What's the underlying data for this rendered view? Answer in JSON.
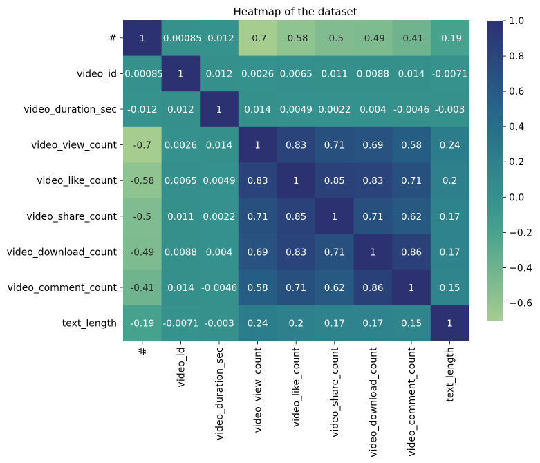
{
  "chart_data": {
    "type": "heatmap",
    "title": "Heatmap of the dataset",
    "xlabel": "",
    "ylabel": "",
    "labels": [
      "#",
      "video_id",
      "video_duration_sec",
      "video_view_count",
      "video_like_count",
      "video_share_count",
      "video_download_count",
      "video_comment_count",
      "text_length"
    ],
    "values": [
      [
        1,
        -0.00085,
        -0.012,
        -0.7,
        -0.58,
        -0.5,
        -0.49,
        -0.41,
        -0.19
      ],
      [
        -0.00085,
        1,
        0.012,
        0.0026,
        0.0065,
        0.011,
        0.0088,
        0.014,
        -0.0071
      ],
      [
        -0.012,
        0.012,
        1,
        0.014,
        0.0049,
        0.0022,
        0.004,
        -0.0046,
        -0.003
      ],
      [
        -0.7,
        0.0026,
        0.014,
        1,
        0.83,
        0.71,
        0.69,
        0.58,
        0.24
      ],
      [
        -0.58,
        0.0065,
        0.0049,
        0.83,
        1,
        0.85,
        0.83,
        0.71,
        0.2
      ],
      [
        -0.5,
        0.011,
        0.0022,
        0.71,
        0.85,
        1,
        0.71,
        0.62,
        0.17
      ],
      [
        -0.49,
        0.0088,
        0.004,
        0.69,
        0.83,
        0.71,
        1,
        0.86,
        0.17
      ],
      [
        -0.41,
        0.014,
        -0.0046,
        0.58,
        0.71,
        0.62,
        0.86,
        1,
        0.15
      ],
      [
        -0.19,
        -0.0071,
        -0.003,
        0.24,
        0.2,
        0.17,
        0.17,
        0.15,
        1
      ]
    ],
    "annotations": [
      [
        "1",
        "-0.00085",
        "-0.012",
        "-0.7",
        "-0.58",
        "-0.5",
        "-0.49",
        "-0.41",
        "-0.19"
      ],
      [
        "-0.00085",
        "1",
        "0.012",
        "0.0026",
        "0.0065",
        "0.011",
        "0.0088",
        "0.014",
        "-0.0071"
      ],
      [
        "-0.012",
        "0.012",
        "1",
        "0.014",
        "0.0049",
        "0.0022",
        "0.004",
        "-0.0046",
        "-0.003"
      ],
      [
        "-0.7",
        "0.0026",
        "0.014",
        "1",
        "0.83",
        "0.71",
        "0.69",
        "0.58",
        "0.24"
      ],
      [
        "-0.58",
        "0.0065",
        "0.0049",
        "0.83",
        "1",
        "0.85",
        "0.83",
        "0.71",
        "0.2"
      ],
      [
        "-0.5",
        "0.011",
        "0.0022",
        "0.71",
        "0.85",
        "1",
        "0.71",
        "0.62",
        "0.17"
      ],
      [
        "-0.49",
        "0.0088",
        "0.004",
        "0.69",
        "0.83",
        "0.71",
        "1",
        "0.86",
        "0.17"
      ],
      [
        "-0.41",
        "0.014",
        "-0.0046",
        "0.58",
        "0.71",
        "0.62",
        "0.86",
        "1",
        "0.15"
      ],
      [
        "-0.19",
        "-0.0071",
        "-0.003",
        "0.24",
        "0.2",
        "0.17",
        "0.17",
        "0.15",
        "1"
      ]
    ],
    "colormap": "crest",
    "colorbar": {
      "vmin": -0.7,
      "vmax": 1.0,
      "ticks": [
        1.0,
        0.8,
        0.6,
        0.4,
        0.2,
        0.0,
        -0.2,
        -0.4,
        -0.6
      ],
      "tick_labels": [
        "1.0",
        "0.8",
        "0.6",
        "0.4",
        "0.2",
        "0.0",
        "−0.2",
        "−0.4",
        "−0.6"
      ],
      "colors": [
        "#a5cd90",
        "#3b9c8d",
        "#246d8b",
        "#2c3172"
      ]
    },
    "grid": false
  }
}
